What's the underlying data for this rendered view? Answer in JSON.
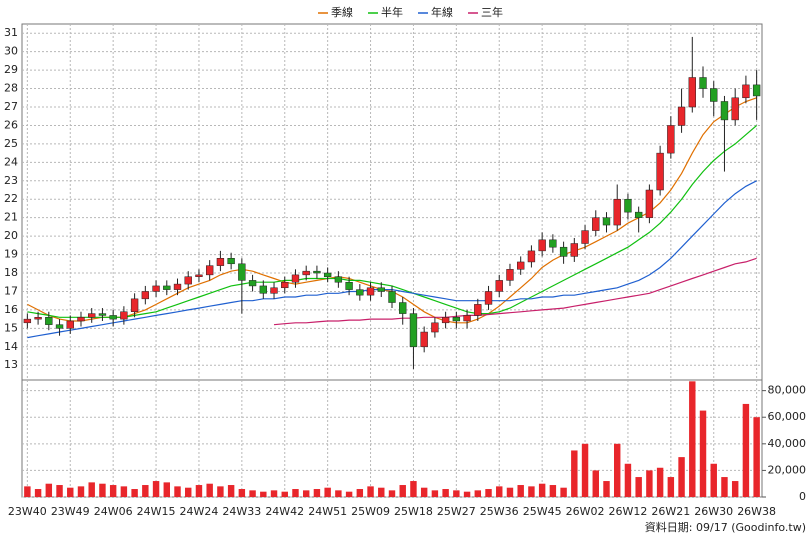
{
  "chart_data": {
    "type": "candlestick",
    "categories": [
      "23W40",
      null,
      null,
      null,
      "23W49",
      null,
      null,
      null,
      "24W06",
      null,
      null,
      null,
      "24W15",
      null,
      null,
      null,
      "24W24",
      null,
      null,
      null,
      "24W33",
      null,
      null,
      null,
      "24W42",
      null,
      null,
      null,
      "24W51",
      null,
      null,
      null,
      "25W09",
      null,
      null,
      null,
      "25W18",
      null,
      null,
      null,
      "25W27",
      null,
      null,
      null,
      "25W36",
      null,
      null,
      null,
      "25W45",
      null,
      null,
      null,
      "26W02",
      null,
      null,
      null,
      "26W12",
      null,
      null,
      null,
      "26W21",
      null,
      null,
      null,
      "26W30",
      null,
      null,
      null,
      "26W38"
    ],
    "open": [
      15.3,
      15.5,
      15.6,
      15.2,
      15.0,
      15.4,
      15.6,
      15.8,
      15.7,
      15.5,
      15.9,
      16.6,
      17.0,
      17.3,
      17.1,
      17.4,
      17.8,
      17.9,
      18.4,
      18.8,
      18.5,
      17.6,
      17.3,
      16.9,
      17.2,
      17.5,
      17.9,
      18.1,
      18.0,
      17.8,
      17.5,
      17.1,
      16.8,
      17.2,
      17.0,
      16.4,
      15.8,
      14.0,
      14.8,
      15.3,
      15.6,
      15.4,
      15.7,
      16.3,
      17.0,
      17.6,
      18.2,
      18.6,
      19.2,
      19.8,
      19.4,
      18.9,
      19.6,
      20.3,
      21.0,
      20.6,
      22.0,
      21.3,
      21.0,
      22.5,
      24.5,
      26.0,
      27.0,
      28.6,
      28.0,
      27.3,
      26.3,
      27.5,
      28.2
    ],
    "high": [
      15.8,
      15.9,
      15.9,
      15.5,
      15.7,
      15.9,
      16.1,
      16.1,
      16.0,
      16.2,
      16.9,
      17.3,
      17.6,
      17.6,
      17.7,
      18.1,
      18.2,
      18.7,
      19.2,
      19.1,
      18.8,
      17.9,
      17.6,
      17.5,
      17.8,
      18.2,
      18.4,
      18.4,
      18.3,
      18.1,
      17.8,
      17.4,
      17.5,
      17.5,
      17.3,
      16.7,
      16.1,
      15.1,
      15.6,
      15.9,
      15.9,
      16.0,
      16.6,
      17.3,
      17.9,
      18.5,
      18.9,
      19.5,
      20.2,
      20.1,
      19.7,
      19.9,
      20.6,
      21.4,
      21.3,
      22.8,
      22.3,
      21.6,
      22.8,
      24.9,
      26.5,
      28.0,
      30.8,
      29.2,
      28.4,
      27.6,
      28.0,
      28.7,
      29.0
    ],
    "low": [
      15.0,
      15.2,
      14.9,
      14.6,
      14.7,
      15.1,
      15.3,
      15.4,
      15.1,
      15.2,
      15.6,
      16.3,
      16.7,
      16.8,
      16.8,
      17.1,
      17.5,
      17.6,
      18.1,
      18.2,
      15.8,
      17.0,
      16.6,
      16.6,
      16.9,
      17.2,
      17.6,
      17.7,
      17.5,
      17.2,
      16.8,
      16.5,
      16.5,
      16.7,
      16.1,
      15.2,
      12.8,
      13.7,
      14.5,
      15.0,
      15.0,
      15.0,
      15.4,
      16.0,
      16.7,
      17.3,
      17.9,
      18.3,
      18.9,
      19.1,
      18.5,
      18.6,
      19.3,
      20.0,
      20.2,
      20.3,
      20.9,
      20.2,
      20.7,
      22.2,
      24.2,
      25.6,
      26.7,
      27.5,
      26.5,
      23.5,
      26.0,
      27.2,
      26.3
    ],
    "close": [
      15.5,
      15.6,
      15.2,
      15.0,
      15.4,
      15.6,
      15.8,
      15.7,
      15.5,
      15.9,
      16.6,
      17.0,
      17.3,
      17.1,
      17.4,
      17.8,
      17.9,
      18.4,
      18.8,
      18.5,
      17.6,
      17.3,
      16.9,
      17.2,
      17.5,
      17.9,
      18.1,
      18.0,
      17.8,
      17.5,
      17.1,
      16.8,
      17.2,
      17.0,
      16.4,
      15.8,
      14.0,
      14.8,
      15.3,
      15.6,
      15.4,
      15.7,
      16.3,
      17.0,
      17.6,
      18.2,
      18.6,
      19.2,
      19.8,
      19.4,
      18.9,
      19.6,
      20.3,
      21.0,
      20.6,
      22.0,
      21.3,
      21.0,
      22.5,
      24.5,
      26.0,
      27.0,
      28.6,
      28.0,
      27.3,
      26.3,
      27.5,
      28.2,
      27.6
    ],
    "up_color": "#e8262b",
    "down_color": "#22a022",
    "series": [
      {
        "name": "季線",
        "color": "#e07000",
        "values": [
          16.3,
          16.0,
          15.7,
          15.5,
          15.4,
          15.4,
          15.5,
          15.6,
          15.6,
          15.6,
          15.8,
          16.0,
          16.3,
          16.6,
          16.9,
          17.2,
          17.4,
          17.6,
          17.9,
          18.1,
          18.2,
          18.1,
          17.9,
          17.7,
          17.5,
          17.4,
          17.5,
          17.6,
          17.7,
          17.8,
          17.7,
          17.5,
          17.3,
          17.1,
          17.0,
          16.7,
          16.3,
          15.9,
          15.6,
          15.4,
          15.3,
          15.3,
          15.5,
          15.8,
          16.2,
          16.7,
          17.2,
          17.7,
          18.3,
          18.7,
          19.0,
          19.2,
          19.4,
          19.7,
          20.0,
          20.3,
          20.7,
          21.0,
          21.3,
          21.8,
          22.5,
          23.4,
          24.5,
          25.5,
          26.2,
          26.6,
          27.0,
          27.3,
          27.5
        ]
      },
      {
        "name": "半年",
        "color": "#10c010",
        "values": [
          15.9,
          15.8,
          15.7,
          15.6,
          15.6,
          15.6,
          15.6,
          15.6,
          15.6,
          15.6,
          15.7,
          15.8,
          15.9,
          16.1,
          16.3,
          16.5,
          16.7,
          16.9,
          17.1,
          17.3,
          17.4,
          17.5,
          17.5,
          17.5,
          17.6,
          17.6,
          17.7,
          17.7,
          17.7,
          17.7,
          17.6,
          17.6,
          17.5,
          17.4,
          17.3,
          17.1,
          16.9,
          16.7,
          16.5,
          16.3,
          16.1,
          15.9,
          15.8,
          15.8,
          15.9,
          16.1,
          16.4,
          16.7,
          17.0,
          17.3,
          17.6,
          17.9,
          18.2,
          18.5,
          18.8,
          19.1,
          19.4,
          19.8,
          20.2,
          20.7,
          21.3,
          22.0,
          22.8,
          23.5,
          24.1,
          24.6,
          25.0,
          25.5,
          26.0
        ]
      },
      {
        "name": "年線",
        "color": "#2060d0",
        "values": [
          14.5,
          14.6,
          14.7,
          14.8,
          14.9,
          15.0,
          15.1,
          15.2,
          15.3,
          15.4,
          15.5,
          15.6,
          15.7,
          15.8,
          15.9,
          16.0,
          16.1,
          16.2,
          16.3,
          16.4,
          16.5,
          16.5,
          16.6,
          16.6,
          16.7,
          16.7,
          16.8,
          16.8,
          16.9,
          16.9,
          17.0,
          17.0,
          17.1,
          17.1,
          17.1,
          17.0,
          16.9,
          16.8,
          16.7,
          16.6,
          16.5,
          16.5,
          16.5,
          16.5,
          16.5,
          16.5,
          16.6,
          16.6,
          16.7,
          16.7,
          16.8,
          16.8,
          16.9,
          17.0,
          17.1,
          17.2,
          17.4,
          17.6,
          17.9,
          18.3,
          18.8,
          19.4,
          20.0,
          20.6,
          21.2,
          21.8,
          22.3,
          22.7,
          23.0
        ]
      },
      {
        "name": "三年",
        "color": "#c8206a",
        "values": [
          null,
          null,
          null,
          null,
          null,
          null,
          null,
          null,
          null,
          null,
          null,
          null,
          null,
          null,
          null,
          null,
          null,
          null,
          null,
          null,
          null,
          null,
          null,
          15.2,
          15.25,
          15.3,
          15.3,
          15.35,
          15.4,
          15.4,
          15.45,
          15.45,
          15.5,
          15.5,
          15.5,
          15.55,
          15.55,
          15.6,
          15.6,
          15.6,
          15.65,
          15.7,
          15.7,
          15.75,
          15.8,
          15.85,
          15.9,
          15.95,
          16.0,
          16.05,
          16.1,
          16.2,
          16.3,
          16.4,
          16.5,
          16.6,
          16.7,
          16.8,
          16.9,
          17.1,
          17.3,
          17.5,
          17.7,
          17.9,
          18.1,
          18.3,
          18.5,
          18.6,
          18.8
        ]
      }
    ],
    "ylim": [
      12.2,
      31.5
    ],
    "yticks": [
      13,
      14,
      15,
      16,
      17,
      18,
      19,
      20,
      21,
      22,
      23,
      24,
      25,
      26,
      27,
      28,
      29,
      30,
      31
    ],
    "grid": true,
    "volume": {
      "color": "#e8262b",
      "values": [
        8000,
        6000,
        10000,
        9000,
        7000,
        8000,
        11000,
        10000,
        9000,
        8000,
        6000,
        9000,
        12000,
        11000,
        8000,
        7000,
        9000,
        10000,
        8000,
        9000,
        6000,
        5000,
        4000,
        5000,
        4000,
        6000,
        5000,
        6000,
        7000,
        5000,
        4000,
        6000,
        8000,
        7000,
        5000,
        9000,
        12000,
        7000,
        5000,
        6000,
        5000,
        4000,
        5000,
        6000,
        8000,
        7000,
        9000,
        8000,
        10000,
        9000,
        7000,
        35000,
        40000,
        20000,
        12000,
        40000,
        25000,
        15000,
        20000,
        22000,
        15000,
        30000,
        87000,
        65000,
        25000,
        15000,
        12000,
        70000,
        60000
      ],
      "ylim": [
        0,
        88000
      ],
      "yticks": [
        0,
        {
          "value": 20000,
          "label": "20,000"
        },
        {
          "value": 40000,
          "label": "40,000"
        },
        {
          "value": 60000,
          "label": "60,000"
        },
        {
          "value": 80000,
          "label": "80,000"
        }
      ]
    },
    "source": "資料日期: 09/17 (Goodinfo.tw)"
  }
}
